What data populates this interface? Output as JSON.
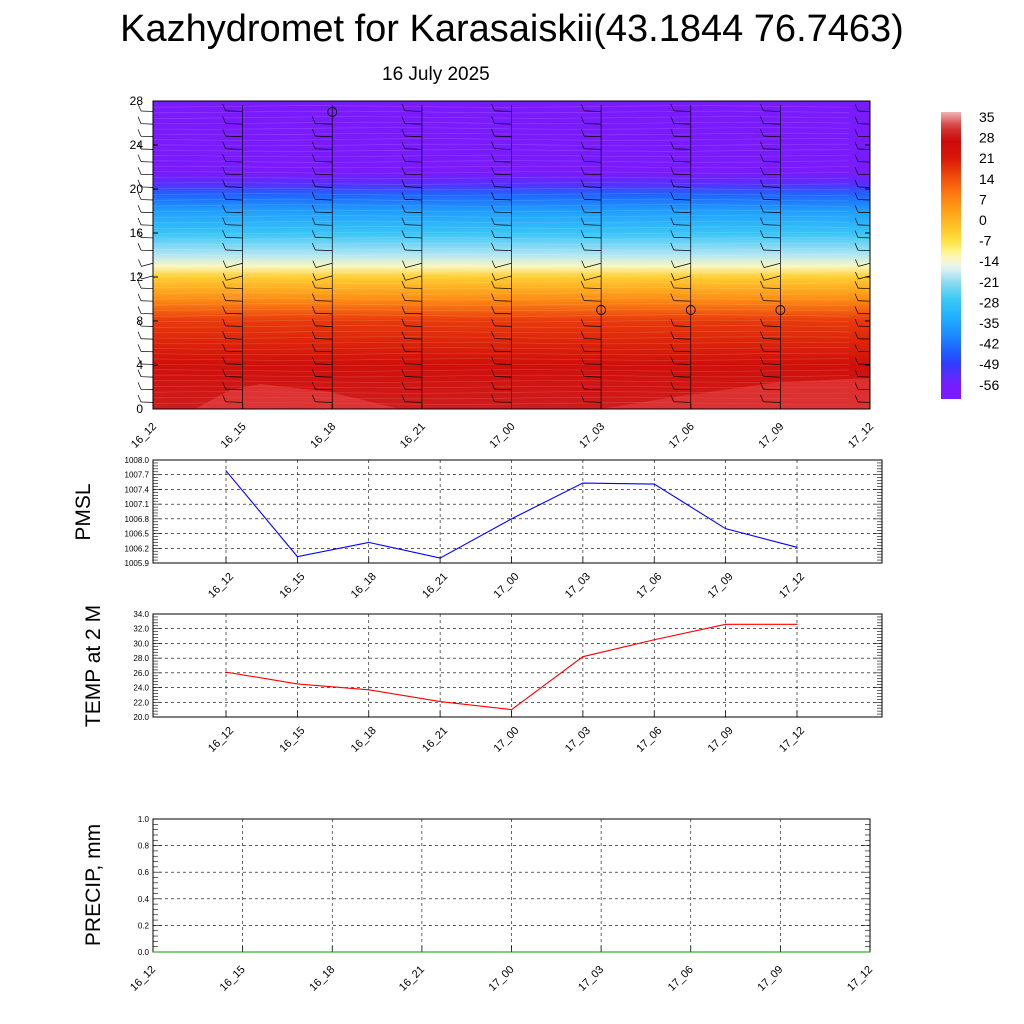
{
  "title": "Kazhydromet for Karasaiskii(43.1844 76.7463)",
  "subtitle": "16 July 2025",
  "time_labels": [
    "16_12",
    "16_15",
    "16_18",
    "16_21",
    "17_00",
    "17_03",
    "17_06",
    "17_09",
    "17_12"
  ],
  "colors": {
    "pmsl_line": "#0000ff",
    "temp_line": "#ff0000",
    "precip_line": "#00a000",
    "grid": "#000000"
  },
  "chart_data": [
    {
      "type": "heatmap",
      "title": "",
      "xlabel": "",
      "ylabel": "",
      "x": [
        "16_12",
        "16_15",
        "16_18",
        "16_21",
        "17_00",
        "17_03",
        "17_06",
        "17_09",
        "17_12"
      ],
      "y_ticks": [
        0,
        4,
        8,
        12,
        16,
        20,
        24,
        28
      ],
      "ylim": [
        0,
        28
      ],
      "colorbar": {
        "labels": [
          "35",
          "28",
          "21",
          "14",
          "7",
          "0",
          "-7",
          "-14",
          "-21",
          "-28",
          "-35",
          "-42",
          "-49",
          "-56"
        ],
        "range": [
          -60,
          38
        ]
      },
      "temperature_profile": [
        {
          "height": 0,
          "temp": 30
        },
        {
          "height": 4,
          "temp": 26
        },
        {
          "height": 8,
          "temp": 18
        },
        {
          "height": 10,
          "temp": 7
        },
        {
          "height": 12,
          "temp": -3
        },
        {
          "height": 13,
          "temp": -12
        },
        {
          "height": 14,
          "temp": -18
        },
        {
          "height": 16,
          "temp": -27
        },
        {
          "height": 18,
          "temp": -35
        },
        {
          "height": 19.5,
          "temp": -43
        },
        {
          "height": 20.5,
          "temp": -52
        },
        {
          "height": 21.5,
          "temp": -58
        },
        {
          "height": 23,
          "temp": -60
        },
        {
          "height": 28,
          "temp": -60
        }
      ],
      "wind_barbs_shown": true,
      "calm_circles": [
        {
          "time": "16_18",
          "height": 27
        },
        {
          "time": "17_03",
          "height": 9
        },
        {
          "time": "17_06",
          "height": 9
        },
        {
          "time": "17_09",
          "height": 9
        }
      ]
    },
    {
      "type": "line",
      "ylabel": "PMSL",
      "categories": [
        "16_12",
        "16_15",
        "16_18",
        "16_21",
        "17_00",
        "17_03",
        "17_06",
        "17_09",
        "17_12"
      ],
      "y_ticks": [
        "1008.0",
        "1007.7",
        "1007.4",
        "1007.1",
        "1006.8",
        "1006.5",
        "1006.2",
        "1005.9"
      ],
      "ylim": [
        1005.9,
        1008.0
      ],
      "series": [
        {
          "values": [
            1007.78,
            1006.03,
            1006.32,
            1006.0,
            1006.8,
            1007.53,
            1007.51,
            1006.6,
            1006.22
          ]
        }
      ],
      "grid": true
    },
    {
      "type": "line",
      "ylabel": "TEMP at 2 M",
      "categories": [
        "16_12",
        "16_15",
        "16_18",
        "16_21",
        "17_00",
        "17_03",
        "17_06",
        "17_09",
        "17_12"
      ],
      "y_ticks": [
        "34.0",
        "32.0",
        "30.0",
        "28.0",
        "26.0",
        "24.0",
        "22.0",
        "20.0"
      ],
      "ylim": [
        20,
        34
      ],
      "series": [
        {
          "values": [
            26.1,
            24.5,
            23.7,
            22.1,
            21.0,
            28.2,
            30.5,
            32.6,
            32.6
          ]
        }
      ],
      "grid": true
    },
    {
      "type": "line",
      "ylabel": "PRECIP, mm",
      "categories": [
        "16_12",
        "16_15",
        "16_18",
        "16_21",
        "17_00",
        "17_03",
        "17_06",
        "17_09",
        "17_12"
      ],
      "y_ticks": [
        "1.0",
        "0.8",
        "0.6",
        "0.4",
        "0.2",
        "0.0"
      ],
      "ylim": [
        0,
        1
      ],
      "series": [
        {
          "values": [
            0,
            0,
            0,
            0,
            0,
            0,
            0,
            0,
            0
          ]
        }
      ],
      "grid": true
    }
  ]
}
